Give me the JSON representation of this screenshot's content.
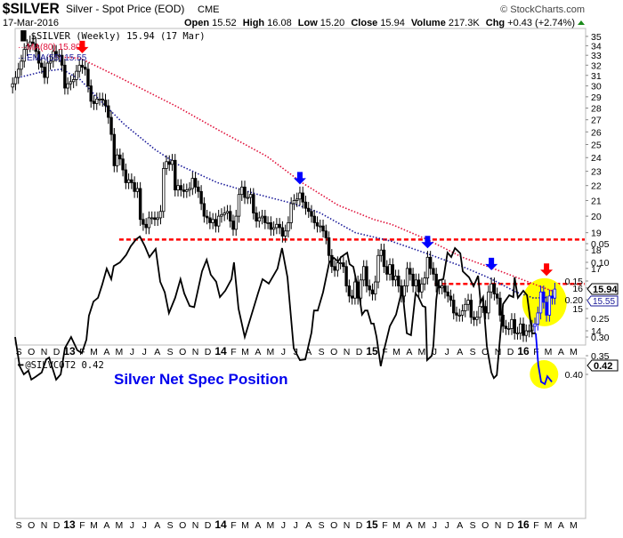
{
  "header": {
    "symbol": "$SILVER",
    "description": "Silver - Spot Price (EOD)",
    "exchange": "CME",
    "copyright": "© StockCharts.com",
    "date": "17-Mar-2016",
    "open_label": "Open",
    "open": "15.52",
    "high_label": "High",
    "high": "16.08",
    "low_label": "Low",
    "low": "15.20",
    "close_label": "Close",
    "close": "15.94",
    "volume_label": "Volume",
    "volume": "217.3K",
    "chg_label": "Chg",
    "chg": "+0.43 (+2.74%)",
    "chg_icon": "triangle-up-icon"
  },
  "colors": {
    "candle": "#000000",
    "highlight_candle": "#0000ff",
    "ma": "#e0103a",
    "ema": "#1a1a99",
    "support_line": "#ff0000",
    "highlight_circle": "#ffff00",
    "arrow_red": "#ff0000",
    "arrow_blue": "#0000ff",
    "annotation": "#0000ee"
  },
  "chart_data": [
    {
      "type": "candlestick",
      "legend": {
        "price": "$SILVER (Weekly) 15.94 (17 Mar)",
        "ma": "MA(80) 15.80",
        "ema": "EMA(55) 15.55"
      },
      "right_labels": {
        "close": "15.94",
        "ema": "15.55"
      },
      "y_scale": "log",
      "ylim": [
        13.5,
        35.5
      ],
      "y_ticks": [
        14,
        15,
        16,
        17,
        18,
        19,
        20,
        21,
        22,
        23,
        24,
        25,
        26,
        27,
        28,
        29,
        30,
        31,
        32,
        33,
        34,
        35
      ],
      "x_tick_labels": [
        "S",
        "O",
        "N",
        "D",
        "13",
        "F",
        "M",
        "A",
        "M",
        "J",
        "J",
        "A",
        "S",
        "O",
        "N",
        "D",
        "14",
        "F",
        "M",
        "A",
        "M",
        "J",
        "J",
        "A",
        "S",
        "O",
        "N",
        "D",
        "15",
        "F",
        "M",
        "A",
        "M",
        "J",
        "J",
        "A",
        "S",
        "O",
        "N",
        "D",
        "16",
        "F",
        "M",
        "A",
        "M"
      ],
      "grid": false,
      "highlighted_candles_from": "2016-01-29",
      "weeks": [
        "2012-08-17",
        "2012-08-24",
        "2012-08-31",
        "2012-09-07",
        "2012-09-14",
        "2012-09-21",
        "2012-09-28",
        "2012-10-05",
        "2012-10-12",
        "2012-10-19",
        "2012-10-26",
        "2012-11-02",
        "2012-11-09",
        "2012-11-16",
        "2012-11-23",
        "2012-11-30",
        "2012-12-07",
        "2012-12-14",
        "2012-12-21",
        "2012-12-28",
        "2013-01-04",
        "2013-01-11",
        "2013-01-18",
        "2013-01-25",
        "2013-02-01",
        "2013-02-08",
        "2013-02-15",
        "2013-02-22",
        "2013-03-01",
        "2013-03-08",
        "2013-03-15",
        "2013-03-22",
        "2013-03-29",
        "2013-04-05",
        "2013-04-12",
        "2013-04-19",
        "2013-04-26",
        "2013-05-03",
        "2013-05-10",
        "2013-05-17",
        "2013-05-24",
        "2013-05-31",
        "2013-06-07",
        "2013-06-14",
        "2013-06-21",
        "2013-06-28",
        "2013-07-05",
        "2013-07-12",
        "2013-07-19",
        "2013-07-26",
        "2013-08-02",
        "2013-08-09",
        "2013-08-16",
        "2013-08-23",
        "2013-08-30",
        "2013-09-06",
        "2013-09-13",
        "2013-09-20",
        "2013-09-27",
        "2013-10-04",
        "2013-10-11",
        "2013-10-18",
        "2013-10-25",
        "2013-11-01",
        "2013-11-08",
        "2013-11-15",
        "2013-11-22",
        "2013-11-29",
        "2013-12-06",
        "2013-12-13",
        "2013-12-20",
        "2013-12-27",
        "2014-01-03",
        "2014-01-10",
        "2014-01-17",
        "2014-01-24",
        "2014-01-31",
        "2014-02-07",
        "2014-02-14",
        "2014-02-21",
        "2014-02-28",
        "2014-03-07",
        "2014-03-14",
        "2014-03-21",
        "2014-03-28",
        "2014-04-04",
        "2014-04-11",
        "2014-04-18",
        "2014-04-25",
        "2014-05-02",
        "2014-05-09",
        "2014-05-16",
        "2014-05-23",
        "2014-05-30",
        "2014-06-06",
        "2014-06-13",
        "2014-06-20",
        "2014-06-27",
        "2014-07-04",
        "2014-07-11",
        "2014-07-18",
        "2014-07-25",
        "2014-08-01",
        "2014-08-08",
        "2014-08-15",
        "2014-08-22",
        "2014-08-29",
        "2014-09-05",
        "2014-09-12",
        "2014-09-19",
        "2014-09-26",
        "2014-10-03",
        "2014-10-10",
        "2014-10-17",
        "2014-10-24",
        "2014-10-31",
        "2014-11-07",
        "2014-11-14",
        "2014-11-21",
        "2014-11-28",
        "2014-12-05",
        "2014-12-12",
        "2014-12-19",
        "2014-12-26",
        "2015-01-02",
        "2015-01-09",
        "2015-01-16",
        "2015-01-23",
        "2015-01-30",
        "2015-02-06",
        "2015-02-13",
        "2015-02-20",
        "2015-02-27",
        "2015-03-06",
        "2015-03-13",
        "2015-03-20",
        "2015-03-27",
        "2015-04-03",
        "2015-04-10",
        "2015-04-17",
        "2015-04-24",
        "2015-05-01",
        "2015-05-08",
        "2015-05-15",
        "2015-05-22",
        "2015-05-29",
        "2015-06-05",
        "2015-06-12",
        "2015-06-19",
        "2015-06-26",
        "2015-07-03",
        "2015-07-10",
        "2015-07-17",
        "2015-07-24",
        "2015-07-31",
        "2015-08-07",
        "2015-08-14",
        "2015-08-21",
        "2015-08-28",
        "2015-09-04",
        "2015-09-11",
        "2015-09-18",
        "2015-09-25",
        "2015-10-02",
        "2015-10-09",
        "2015-10-16",
        "2015-10-23",
        "2015-10-30",
        "2015-11-06",
        "2015-11-13",
        "2015-11-20",
        "2015-11-27",
        "2015-12-04",
        "2015-12-11",
        "2015-12-18",
        "2015-12-25",
        "2016-01-01",
        "2016-01-08",
        "2016-01-15",
        "2016-01-22",
        "2016-01-29",
        "2016-02-05",
        "2016-02-12",
        "2016-02-19",
        "2016-02-26",
        "2016-03-04",
        "2016-03-11",
        "2016-03-17"
      ],
      "close": [
        30.2,
        30.8,
        31.6,
        32.4,
        33.6,
        34.0,
        34.4,
        34.2,
        33.4,
        32.2,
        31.8,
        30.8,
        32.2,
        32.4,
        33.4,
        33.0,
        33.0,
        32.0,
        29.8,
        30.2,
        30.4,
        30.6,
        31.4,
        32.0,
        31.8,
        31.6,
        30.0,
        28.6,
        28.4,
        28.8,
        28.8,
        28.7,
        28.2,
        27.2,
        25.8,
        23.4,
        24.2,
        23.9,
        23.1,
        22.2,
        22.4,
        22.2,
        21.6,
        21.8,
        19.8,
        19.5,
        19.3,
        19.9,
        19.9,
        19.8,
        19.9,
        20.3,
        23.2,
        23.7,
        23.5,
        23.8,
        21.7,
        22.0,
        21.7,
        21.6,
        21.7,
        21.8,
        22.5,
        21.9,
        21.6,
        20.8,
        20.0,
        19.9,
        19.6,
        19.8,
        19.4,
        20.0,
        20.1,
        20.2,
        20.3,
        19.7,
        19.2,
        20.0,
        21.4,
        21.9,
        21.2,
        21.2,
        21.4,
        20.2,
        19.7,
        19.9,
        20.0,
        19.6,
        19.6,
        19.2,
        19.3,
        19.5,
        19.3,
        18.8,
        19.1,
        19.6,
        20.8,
        21.0,
        21.1,
        21.5,
        20.9,
        20.5,
        20.3,
        20.0,
        19.6,
        19.4,
        19.4,
        19.1,
        18.7,
        17.7,
        17.1,
        16.9,
        17.3,
        17.3,
        17.1,
        16.1,
        15.6,
        15.5,
        16.3,
        15.5,
        16.4,
        17.1,
        16.1,
        15.9,
        15.7,
        16.3,
        17.7,
        18.0,
        17.1,
        16.7,
        17.2,
        16.4,
        16.6,
        16.1,
        15.6,
        16.1,
        17.0,
        16.7,
        16.1,
        16.4,
        15.8,
        16.2,
        16.5,
        17.6,
        17.0,
        16.7,
        16.1,
        16.0,
        16.1,
        15.8,
        15.6,
        15.4,
        14.8,
        14.7,
        14.7,
        14.9,
        15.2,
        15.4,
        14.6,
        14.5,
        14.6,
        15.1,
        15.1,
        14.8,
        15.8,
        16.2,
        15.7,
        15.5,
        14.7,
        14.2,
        14.1,
        14.1,
        14.5,
        13.9,
        13.9,
        14.3,
        13.8,
        14.0,
        14.0,
        14.2,
        14.3,
        14.8,
        15.8,
        15.3,
        14.7,
        15.6,
        15.5,
        15.94
      ],
      "ma_80": [
        [
          "2012-11-13",
          32.9
        ],
        [
          "2013-01-27",
          32.7
        ],
        [
          "2013-04-22",
          31.0
        ],
        [
          "2013-09-19",
          28.1
        ],
        [
          "2013-12-24",
          26.2
        ],
        [
          "2014-04-22",
          24.1
        ],
        [
          "2014-07-16",
          22.2
        ],
        [
          "2014-10-11",
          20.7
        ],
        [
          "2015-01-05",
          19.8
        ],
        [
          "2015-02-17",
          19.5
        ],
        [
          "2015-05-14",
          18.6
        ],
        [
          "2015-08-07",
          17.6
        ],
        [
          "2015-11-01",
          16.9
        ],
        [
          "2016-01-26",
          16.2
        ],
        [
          "2016-03-17",
          15.8
        ]
      ],
      "ema_55": [
        [
          "2012-08-22",
          30.7
        ],
        [
          "2012-11-01",
          31.4
        ],
        [
          "2012-12-14",
          31.6
        ],
        [
          "2013-01-27",
          30.6
        ],
        [
          "2013-03-10",
          28.9
        ],
        [
          "2013-05-14",
          26.6
        ],
        [
          "2013-07-27",
          24.6
        ],
        [
          "2013-09-19",
          23.5
        ],
        [
          "2013-12-24",
          22.2
        ],
        [
          "2014-04-01",
          21.4
        ],
        [
          "2014-06-25",
          20.8
        ],
        [
          "2014-08-29",
          20.2
        ],
        [
          "2014-11-22",
          19.0
        ],
        [
          "2015-02-17",
          18.5
        ],
        [
          "2015-05-14",
          17.8
        ],
        [
          "2015-08-07",
          17.1
        ],
        [
          "2015-10-11",
          16.5
        ],
        [
          "2015-12-14",
          15.8
        ],
        [
          "2016-01-26",
          15.5
        ],
        [
          "2016-03-17",
          15.55
        ]
      ],
      "horizontal_lines": [
        {
          "value": 18.6,
          "from": "2013-05-01",
          "to": "2016-06-01"
        },
        {
          "value": 16.2,
          "from": "2015-06-01",
          "to": "2016-06-15"
        }
      ],
      "arrows": [
        {
          "date": "2013-02-01",
          "value": 33.4,
          "color": "red"
        },
        {
          "date": "2014-07-11",
          "value": 22.2,
          "color": "blue"
        },
        {
          "date": "2015-05-15",
          "value": 18.2,
          "color": "blue"
        },
        {
          "date": "2015-10-16",
          "value": 17.0,
          "color": "blue"
        },
        {
          "date": "2016-02-26",
          "value": 16.7,
          "color": "red"
        }
      ],
      "highlight_circle": {
        "date": "2016-02-21",
        "value": 15.3
      }
    },
    {
      "type": "line",
      "legend": "@SILVCOT2 0.42",
      "annotation": "Silver Net Spec Position",
      "right_label": "0.42",
      "ylim": [
        0.01,
        0.44
      ],
      "y_ticks": [
        "0.05",
        "0.10",
        "0.15",
        "0.20",
        "0.25",
        "0.30",
        "0.35",
        "0.40"
      ],
      "highlight_from": "2016-02-01",
      "highlight_circle": {
        "date": "2016-02-20",
        "value": 0.4
      },
      "points": [
        [
          "2012-08-23",
          0.3
        ],
        [
          "2012-09-03",
          0.378
        ],
        [
          "2012-09-13",
          0.4
        ],
        [
          "2012-09-24",
          0.39
        ],
        [
          "2012-10-01",
          0.414
        ],
        [
          "2012-10-11",
          0.407
        ],
        [
          "2012-10-26",
          0.395
        ],
        [
          "2012-11-06",
          0.36
        ],
        [
          "2012-11-13",
          0.355
        ],
        [
          "2012-11-30",
          0.414
        ],
        [
          "2012-12-11",
          0.4
        ],
        [
          "2012-12-21",
          0.33
        ],
        [
          "2013-01-05",
          0.3
        ],
        [
          "2013-01-20",
          0.335
        ],
        [
          "2013-01-31",
          0.343
        ],
        [
          "2013-02-11",
          0.307
        ],
        [
          "2013-02-17",
          0.243
        ],
        [
          "2013-02-28",
          0.205
        ],
        [
          "2013-03-11",
          0.195
        ],
        [
          "2013-03-21",
          0.16
        ],
        [
          "2013-04-01",
          0.117
        ],
        [
          "2013-04-12",
          0.145
        ],
        [
          "2013-04-18",
          0.11
        ],
        [
          "2013-05-03",
          0.1
        ],
        [
          "2013-05-18",
          0.08
        ],
        [
          "2013-05-29",
          0.057
        ],
        [
          "2013-06-11",
          0.038
        ],
        [
          "2013-06-20",
          0.031
        ],
        [
          "2013-07-02",
          0.057
        ],
        [
          "2013-07-13",
          0.086
        ],
        [
          "2013-07-28",
          0.064
        ],
        [
          "2013-08-08",
          0.152
        ],
        [
          "2013-08-19",
          0.18
        ],
        [
          "2013-08-29",
          0.236
        ],
        [
          "2013-09-13",
          0.195
        ],
        [
          "2013-09-26",
          0.145
        ],
        [
          "2013-10-05",
          0.183
        ],
        [
          "2013-10-18",
          0.217
        ],
        [
          "2013-10-29",
          0.22
        ],
        [
          "2013-11-17",
          0.124
        ],
        [
          "2013-11-28",
          0.093
        ],
        [
          "2013-12-08",
          0.133
        ],
        [
          "2013-12-21",
          0.152
        ],
        [
          "2013-12-30",
          0.193
        ],
        [
          "2014-01-12",
          0.176
        ],
        [
          "2014-01-27",
          0.145
        ],
        [
          "2014-02-02",
          0.1
        ],
        [
          "2014-02-13",
          0.224
        ],
        [
          "2014-02-28",
          0.3
        ],
        [
          "2014-03-11",
          0.26
        ],
        [
          "2014-04-01",
          0.183
        ],
        [
          "2014-04-12",
          0.145
        ],
        [
          "2014-04-27",
          0.157
        ],
        [
          "2014-05-18",
          0.117
        ],
        [
          "2014-05-29",
          0.062
        ],
        [
          "2014-06-11",
          0.14
        ],
        [
          "2014-06-26",
          0.33
        ],
        [
          "2014-07-11",
          0.362
        ],
        [
          "2014-07-24",
          0.36
        ],
        [
          "2014-08-08",
          0.288
        ],
        [
          "2014-08-14",
          0.229
        ],
        [
          "2014-08-23",
          0.229
        ],
        [
          "2014-09-05",
          0.18
        ],
        [
          "2014-09-20",
          0.1
        ],
        [
          "2014-10-01",
          0.088
        ],
        [
          "2014-10-11",
          0.098
        ],
        [
          "2014-10-18",
          0.086
        ],
        [
          "2014-11-02",
          0.074
        ],
        [
          "2014-11-08",
          0.105
        ],
        [
          "2014-11-17",
          0.112
        ],
        [
          "2014-11-30",
          0.18
        ],
        [
          "2014-12-08",
          0.24
        ],
        [
          "2014-12-15",
          0.229
        ],
        [
          "2014-12-21",
          0.229
        ],
        [
          "2014-12-30",
          0.264
        ],
        [
          "2015-01-05",
          0.264
        ],
        [
          "2015-01-12",
          0.3
        ],
        [
          "2015-01-22",
          0.378
        ],
        [
          "2015-01-31",
          0.33
        ],
        [
          "2015-02-13",
          0.271
        ],
        [
          "2015-02-28",
          0.24
        ],
        [
          "2015-03-15",
          0.171
        ],
        [
          "2015-03-26",
          0.29
        ],
        [
          "2015-04-05",
          0.295
        ],
        [
          "2015-04-16",
          0.183
        ],
        [
          "2015-04-23",
          0.193
        ],
        [
          "2015-05-03",
          0.217
        ],
        [
          "2015-05-10",
          0.22
        ],
        [
          "2015-05-14",
          0.362
        ],
        [
          "2015-05-25",
          0.35
        ],
        [
          "2015-05-29",
          0.324
        ],
        [
          "2015-06-05",
          0.2
        ],
        [
          "2015-06-11",
          0.148
        ],
        [
          "2015-06-22",
          0.145
        ],
        [
          "2015-07-02",
          0.074
        ],
        [
          "2015-07-11",
          0.086
        ],
        [
          "2015-07-20",
          0.062
        ],
        [
          "2015-08-02",
          0.076
        ],
        [
          "2015-08-08",
          0.124
        ],
        [
          "2015-08-23",
          0.14
        ],
        [
          "2015-09-03",
          0.164
        ],
        [
          "2015-09-14",
          0.136
        ],
        [
          "2015-09-20",
          0.207
        ],
        [
          "2015-09-26",
          0.193
        ],
        [
          "2015-10-05",
          0.324
        ],
        [
          "2015-10-16",
          0.395
        ],
        [
          "2015-10-22",
          0.41
        ],
        [
          "2015-10-29",
          0.402
        ],
        [
          "2015-11-13",
          0.212
        ],
        [
          "2015-11-28",
          0.188
        ],
        [
          "2015-12-08",
          0.193
        ],
        [
          "2015-12-11",
          0.14
        ],
        [
          "2015-12-19",
          0.195
        ],
        [
          "2016-01-01",
          0.176
        ],
        [
          "2016-01-10",
          0.188
        ],
        [
          "2016-01-22",
          0.29
        ],
        [
          "2016-01-31",
          0.29
        ],
        [
          "2016-02-06",
          0.374
        ],
        [
          "2016-02-13",
          0.42
        ],
        [
          "2016-02-22",
          0.426
        ],
        [
          "2016-02-28",
          0.405
        ],
        [
          "2016-03-10",
          0.42
        ]
      ]
    }
  ]
}
